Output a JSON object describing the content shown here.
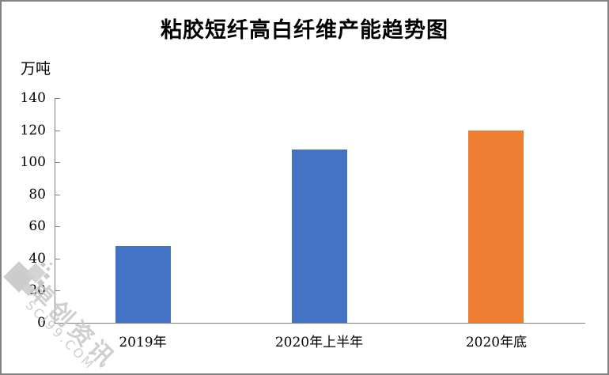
{
  "chart_data": {
    "type": "bar",
    "title": "粘胶短纤高白纤维产能趋势图",
    "ylabel": "万吨",
    "xlabel": "",
    "categories": [
      "2019年",
      "2020年上半年",
      "2020年底"
    ],
    "values": [
      48,
      108,
      120
    ],
    "bar_colors": [
      "#4472c4",
      "#4472c4",
      "#ed7d31"
    ],
    "ylim": [
      0,
      140
    ],
    "yticks": [
      0,
      20,
      40,
      60,
      80,
      100,
      120,
      140
    ],
    "grid": false,
    "legend": false
  },
  "watermark": {
    "text_cn": "卓创资讯",
    "text_en": "SCI99.COM"
  },
  "colors": {
    "bar_blue": "#4472c4",
    "bar_orange": "#ed7d31",
    "axis": "#808080",
    "frame_border": "#828282",
    "watermark": "#c7c7c7",
    "background": "#ffffff"
  }
}
